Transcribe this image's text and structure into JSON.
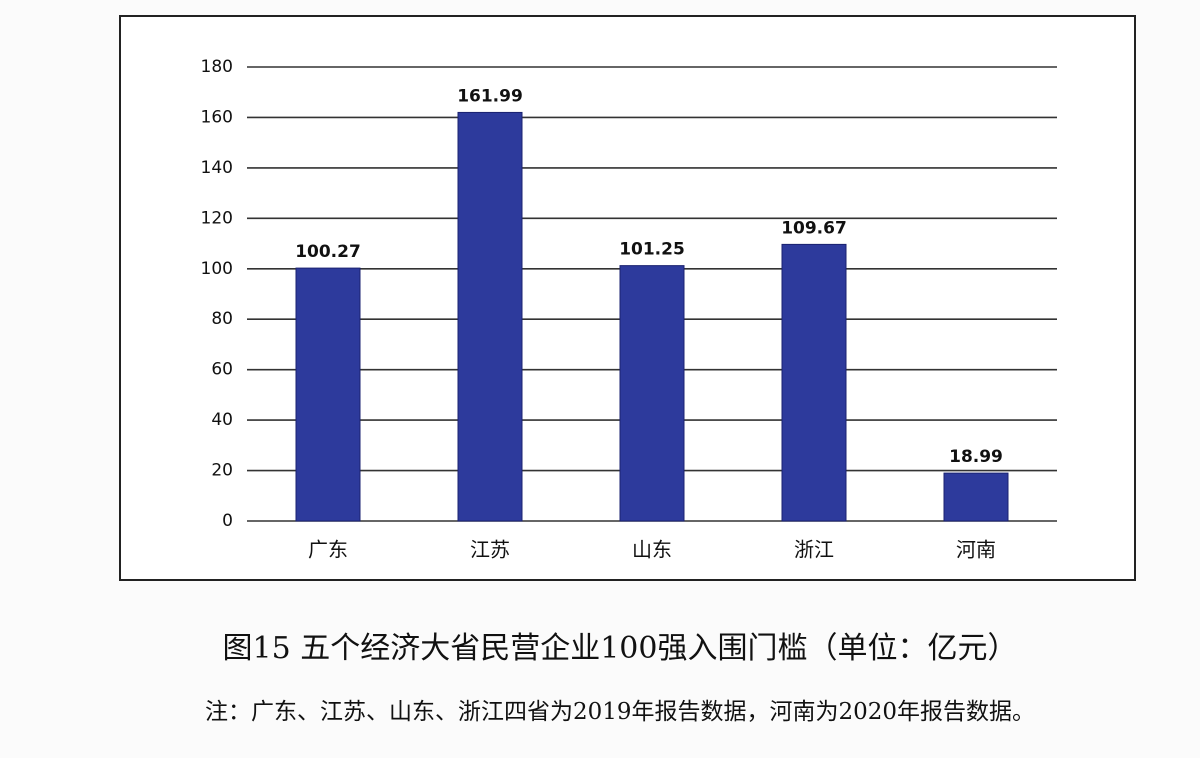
{
  "chart_data": {
    "type": "bar",
    "title": "图15  五个经济大省民营企业100强入围门槛（单位：亿元）",
    "note": "注：广东、江苏、山东、浙江四省为2019年报告数据，河南为2020年报告数据。",
    "categories": [
      "广东",
      "江苏",
      "山东",
      "浙江",
      "河南"
    ],
    "values": [
      100.27,
      161.99,
      101.25,
      109.67,
      18.99
    ],
    "color": "#2d3a9c",
    "ylim": [
      0,
      180
    ],
    "yticks": [
      0,
      20,
      40,
      60,
      80,
      100,
      120,
      140,
      160,
      180
    ],
    "grid": true
  }
}
